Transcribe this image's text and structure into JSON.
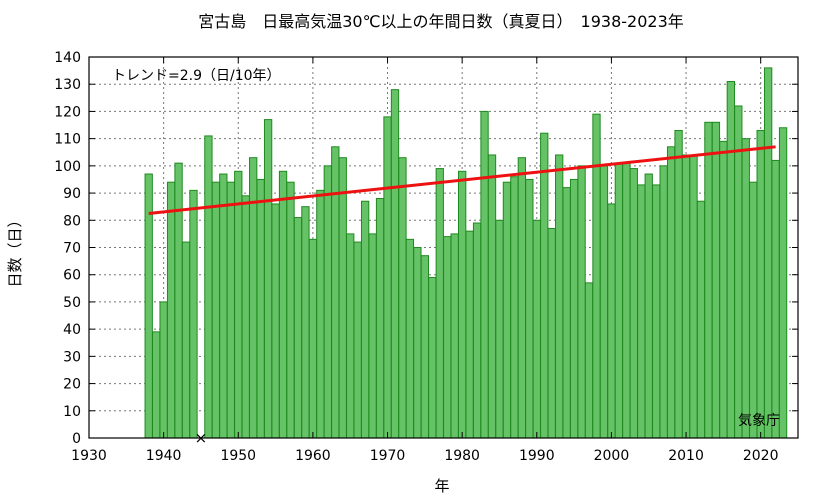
{
  "chart_data": {
    "type": "bar",
    "title": "宮古島　日最高気温30℃以上の年間日数（真夏日）　1938-2023年",
    "xlabel": "年",
    "ylabel": "日数（日）",
    "annotation": "トレンド=2.9（日/10年）",
    "source": "気象庁",
    "xlim": [
      1930,
      2025
    ],
    "ylim": [
      0,
      140
    ],
    "xticks": [
      1930,
      1940,
      1950,
      1960,
      1970,
      1980,
      1990,
      2000,
      2010,
      2020
    ],
    "yticks": [
      0,
      10,
      20,
      30,
      40,
      50,
      60,
      70,
      80,
      90,
      100,
      110,
      120,
      130,
      140
    ],
    "grid": true,
    "bar_color": "#66c266",
    "bar_edge_color": "#1f8a1f",
    "trend_color": "#ee1111",
    "missing_marker": "×",
    "missing_years": [
      1945
    ],
    "trend": {
      "x": [
        1938,
        2022
      ],
      "y": [
        82.5,
        107
      ]
    },
    "years": [
      1938,
      1939,
      1940,
      1941,
      1942,
      1943,
      1944,
      1945,
      1946,
      1947,
      1948,
      1949,
      1950,
      1951,
      1952,
      1953,
      1954,
      1955,
      1956,
      1957,
      1958,
      1959,
      1960,
      1961,
      1962,
      1963,
      1964,
      1965,
      1966,
      1967,
      1968,
      1969,
      1970,
      1971,
      1972,
      1973,
      1974,
      1975,
      1976,
      1977,
      1978,
      1979,
      1980,
      1981,
      1982,
      1983,
      1984,
      1985,
      1986,
      1987,
      1988,
      1989,
      1990,
      1991,
      1992,
      1993,
      1994,
      1995,
      1996,
      1997,
      1998,
      1999,
      2000,
      2001,
      2002,
      2003,
      2004,
      2005,
      2006,
      2007,
      2008,
      2009,
      2010,
      2011,
      2012,
      2013,
      2014,
      2015,
      2016,
      2017,
      2018,
      2019,
      2020,
      2021,
      2022,
      2023
    ],
    "values": [
      97,
      39,
      50,
      94,
      101,
      72,
      91,
      null,
      111,
      94,
      97,
      94,
      98,
      89,
      103,
      95,
      117,
      86,
      98,
      94,
      81,
      85,
      73,
      91,
      100,
      107,
      103,
      75,
      72,
      87,
      75,
      88,
      118,
      128,
      103,
      73,
      70,
      67,
      59,
      99,
      74,
      75,
      98,
      76,
      79,
      120,
      104,
      80,
      94,
      96,
      103,
      95,
      80,
      112,
      77,
      104,
      92,
      95,
      100,
      57,
      119,
      100,
      86,
      101,
      101,
      99,
      93,
      97,
      93,
      100,
      107,
      113,
      104,
      104,
      87,
      116,
      116,
      109,
      131,
      122,
      110,
      94,
      113,
      136,
      102,
      114
    ]
  }
}
